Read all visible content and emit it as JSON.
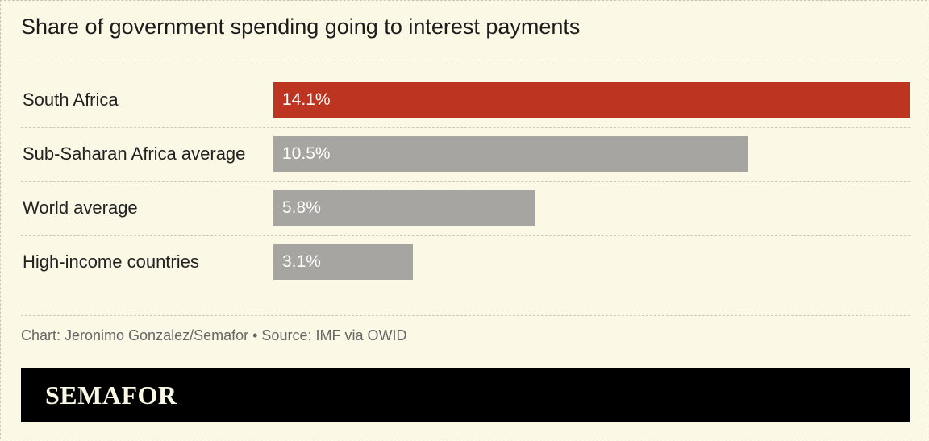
{
  "chart_data": {
    "type": "bar",
    "orientation": "horizontal",
    "title": "Share of government spending going to interest payments",
    "categories": [
      "South Africa",
      "Sub-Saharan Africa average",
      "World average",
      "High-income countries"
    ],
    "values": [
      14.1,
      10.5,
      5.8,
      3.1
    ],
    "value_labels": [
      "14.1%",
      "10.5%",
      "5.8%",
      "3.1%"
    ],
    "unit": "%",
    "xlim": [
      0,
      14.1
    ],
    "highlight_color": "#bd3421",
    "default_color": "#a6a5a2",
    "highlight_index": 0
  },
  "credit": "Chart: Jeronimo Gonzalez/Semafor • Source: IMF via OWID",
  "brand": "SEMAFOR"
}
